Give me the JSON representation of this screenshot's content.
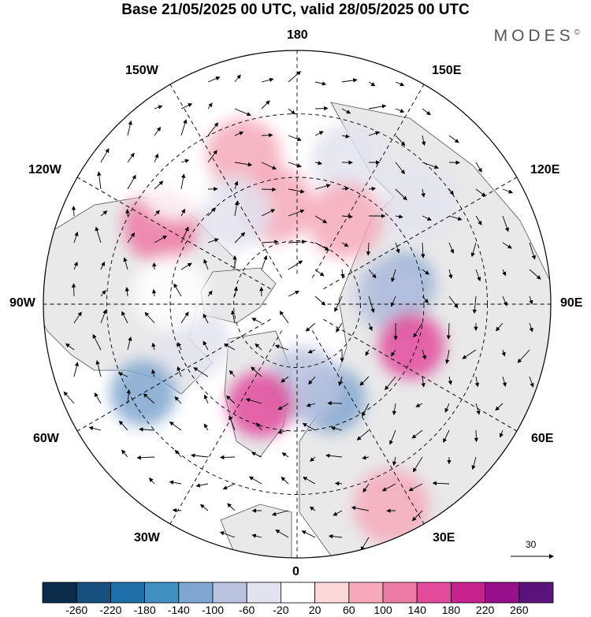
{
  "title": "Base 21/05/2025 00 UTC, valid 28/05/2025 00 UTC",
  "brand": "MODES",
  "brand_mark": "©",
  "longitude_labels": {
    "top": "180",
    "bottom": "0",
    "left": "90W",
    "right": "90E",
    "w150": "150W",
    "e150": "150E",
    "w120": "120W",
    "e120": "120E",
    "w60": "60W",
    "e60": "60E",
    "w30": "30W",
    "e30": "30E"
  },
  "vector_reference": "30",
  "colorbar": {
    "ticks": [
      "-260",
      "-220",
      "-180",
      "-140",
      "-100",
      "-60",
      "-20",
      "20",
      "60",
      "100",
      "140",
      "180",
      "220",
      "260"
    ],
    "colors": [
      "#0c2c4c",
      "#15507e",
      "#1f6fa8",
      "#3f8fc0",
      "#7fa6cf",
      "#b9c2de",
      "#e2e3ef",
      "#ffffff",
      "#fbd9d9",
      "#f6a9ba",
      "#ee7aa6",
      "#e24b9c",
      "#c8208d",
      "#95108a",
      "#5a137a"
    ]
  },
  "anomalies": [
    {
      "lon": 200,
      "r": 0.62,
      "val": 60
    },
    {
      "lon": 192,
      "r": 0.4,
      "val": 60
    },
    {
      "lon": 160,
      "r": 0.6,
      "val": -60
    },
    {
      "lon": 130,
      "r": 0.62,
      "val": -60
    },
    {
      "lon": 100,
      "r": 0.42,
      "val": -140
    },
    {
      "lon": 95,
      "r": 0.38,
      "val": -100
    },
    {
      "lon": 70,
      "r": 0.48,
      "val": 140
    },
    {
      "lon": 150,
      "r": 0.38,
      "val": 60
    },
    {
      "lon": 20,
      "r": 0.4,
      "val": -140
    },
    {
      "lon": 5,
      "r": 0.32,
      "val": -100
    },
    {
      "lon": 340,
      "r": 0.42,
      "val": 140
    },
    {
      "lon": 300,
      "r": 0.7,
      "val": -140
    },
    {
      "lon": 290,
      "r": 0.44,
      "val": -60
    },
    {
      "lon": 240,
      "r": 0.62,
      "val": 100
    },
    {
      "lon": 215,
      "r": 0.44,
      "val": -60
    },
    {
      "lon": 225,
      "r": 0.68,
      "val": -20
    },
    {
      "lon": 25,
      "r": 0.88,
      "val": 60
    },
    {
      "lon": 265,
      "r": 0.5,
      "val": -20
    }
  ]
}
